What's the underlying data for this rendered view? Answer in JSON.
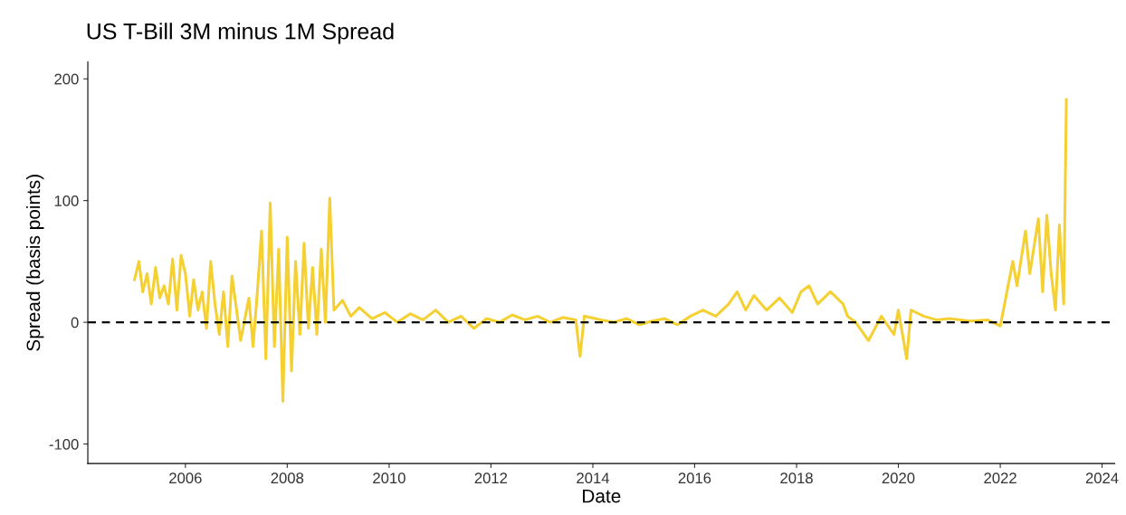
{
  "chart_data": {
    "type": "line",
    "title": "US T-Bill 3M minus 1M Spread",
    "xlabel": "Date",
    "ylabel": "Spread (basis points)",
    "x": [
      "2005-01",
      "2005-02",
      "2005-03",
      "2005-04",
      "2005-05",
      "2005-06",
      "2005-07",
      "2005-08",
      "2005-09",
      "2005-10",
      "2005-11",
      "2005-12",
      "2006-01",
      "2006-02",
      "2006-03",
      "2006-04",
      "2006-05",
      "2006-06",
      "2006-07",
      "2006-08",
      "2006-09",
      "2006-10",
      "2006-11",
      "2006-12",
      "2007-02",
      "2007-04",
      "2007-05",
      "2007-06",
      "2007-07",
      "2007-08",
      "2007-09",
      "2007-10",
      "2007-11",
      "2007-12",
      "2008-01",
      "2008-02",
      "2008-03",
      "2008-04",
      "2008-05",
      "2008-06",
      "2008-07",
      "2008-08",
      "2008-09",
      "2008-10",
      "2008-11",
      "2008-12",
      "2009-02",
      "2009-04",
      "2009-06",
      "2009-09",
      "2009-12",
      "2010-03",
      "2010-06",
      "2010-09",
      "2010-12",
      "2011-03",
      "2011-06",
      "2011-09",
      "2011-12",
      "2012-03",
      "2012-06",
      "2012-09",
      "2012-12",
      "2013-03",
      "2013-06",
      "2013-09",
      "2013-10",
      "2013-11",
      "2014-03",
      "2014-06",
      "2014-09",
      "2014-12",
      "2015-03",
      "2015-06",
      "2015-09",
      "2015-12",
      "2016-03",
      "2016-06",
      "2016-09",
      "2016-11",
      "2017-01",
      "2017-03",
      "2017-06",
      "2017-09",
      "2017-12",
      "2018-02",
      "2018-04",
      "2018-06",
      "2018-09",
      "2018-12",
      "2019-01",
      "2019-03",
      "2019-06",
      "2019-09",
      "2019-12",
      "2020-01",
      "2020-03",
      "2020-04",
      "2020-07",
      "2020-10",
      "2021-01",
      "2021-06",
      "2021-10",
      "2022-01",
      "2022-02",
      "2022-04",
      "2022-05",
      "2022-07",
      "2022-08",
      "2022-10",
      "2022-11",
      "2022-12",
      "2023-01",
      "2023-02",
      "2023-03",
      "2023-04",
      "2023-04-20"
    ],
    "series": [
      {
        "color": "#f5d033",
        "values": [
          35,
          50,
          25,
          40,
          15,
          45,
          20,
          30,
          15,
          52,
          10,
          55,
          40,
          5,
          35,
          10,
          25,
          -5,
          50,
          15,
          -10,
          25,
          -20,
          38,
          -15,
          20,
          -20,
          25,
          75,
          -30,
          98,
          -20,
          60,
          -65,
          70,
          -40,
          50,
          -10,
          65,
          -5,
          45,
          -10,
          60,
          0,
          102,
          10,
          18,
          5,
          12,
          3,
          8,
          0,
          7,
          2,
          10,
          0,
          5,
          -5,
          3,
          0,
          6,
          2,
          5,
          0,
          4,
          2,
          -28,
          5,
          2,
          0,
          3,
          -2,
          1,
          3,
          -2,
          5,
          10,
          5,
          15,
          25,
          10,
          22,
          10,
          20,
          8,
          25,
          30,
          15,
          25,
          15,
          5,
          0,
          -15,
          5,
          -10,
          10,
          -30,
          10,
          5,
          2,
          3,
          1,
          2,
          -3,
          15,
          50,
          30,
          75,
          40,
          85,
          25,
          88,
          40,
          10,
          80,
          15,
          183
        ]
      }
    ],
    "xlim": [
      "2004-02",
      "2024-04"
    ],
    "xticks": [
      "2006",
      "2008",
      "2010",
      "2012",
      "2014",
      "2016",
      "2018",
      "2020",
      "2022",
      "2024"
    ],
    "ylim": [
      -116,
      214
    ],
    "yticks": [
      -100,
      0,
      100,
      200
    ],
    "ref_lines": [
      {
        "axis": "y",
        "value": 0,
        "color": "#000000",
        "line_style": "dashed"
      }
    ],
    "grid": false,
    "legend": false
  }
}
